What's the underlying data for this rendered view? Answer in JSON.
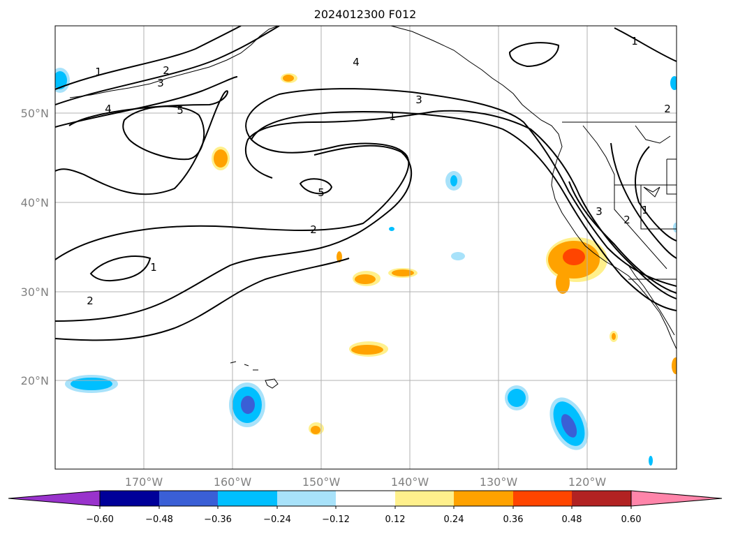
{
  "title": "2024012300 F012",
  "map": {
    "lat_labels": [
      "50°N",
      "40°N",
      "30°N",
      "20°N"
    ],
    "lon_labels": [
      "170°W",
      "160°W",
      "150°W",
      "140°W",
      "130°W",
      "120°W"
    ],
    "contour_labels": [
      "1",
      "2",
      "3",
      "4",
      "5",
      "5",
      "4",
      "3",
      "1",
      "2",
      "1",
      "2",
      "3",
      "2",
      "1",
      "2",
      "1"
    ]
  },
  "colorbar": {
    "labels": [
      "−0.60",
      "−0.48",
      "−0.36",
      "−0.24",
      "−0.12",
      "0.12",
      "0.24",
      "0.36",
      "0.48",
      "0.60"
    ],
    "colors": [
      "#9933cc",
      "#000099",
      "#3a5fd6",
      "#00bfff",
      "#a8e2fa",
      "#ffffff",
      "#fff08c",
      "#ffa200",
      "#ff4500",
      "#b22222",
      "#ff85aa"
    ]
  }
}
